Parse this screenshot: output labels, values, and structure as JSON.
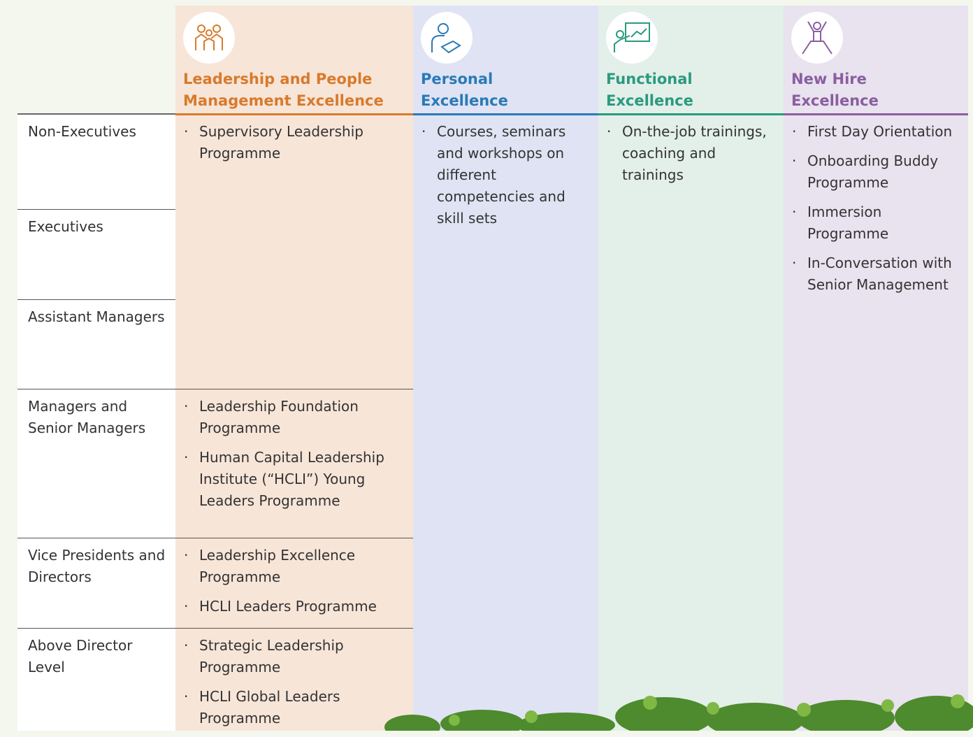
{
  "columns": [
    {
      "title": "Leadership and People Management Excellence"
    },
    {
      "title": "Personal Excellence"
    },
    {
      "title": "Functional Excellence"
    },
    {
      "title": "New Hire Excellence"
    }
  ],
  "rows": [
    "Non-Executives",
    "Executives",
    "Assistant Managers",
    "Managers and Senior Managers",
    "Vice Presidents and Directors",
    "Above Director Level"
  ],
  "leadership_groups": [
    {
      "items": [
        "Supervisory Leadership Programme"
      ]
    },
    {
      "items": [
        "Leadership Foundation Programme",
        "Human Capital Leadership Institute (“HCLI”) Young Leaders Programme"
      ]
    },
    {
      "items": [
        "Leadership Excellence Programme",
        "HCLI Leaders Programme"
      ]
    },
    {
      "items": [
        "Strategic Leadership Programme",
        "HCLI Global Leaders Programme"
      ]
    }
  ],
  "personal_items": [
    "Courses, seminars and workshops on different competencies and skill sets"
  ],
  "functional_items": [
    "On-the-job trainings, coaching and trainings"
  ],
  "new_hire_items": [
    "First Day Orientation",
    "Onboarding Buddy Programme",
    "Immersion Programme",
    "In-Conversation with Senior Management"
  ]
}
